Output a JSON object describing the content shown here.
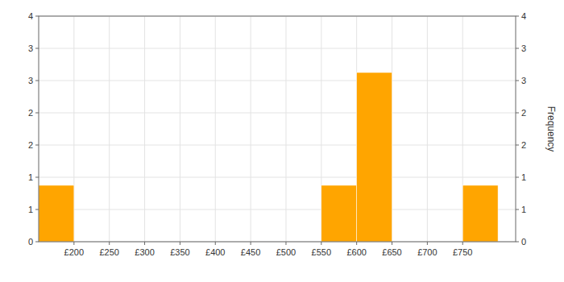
{
  "chart_data": {
    "type": "histogram",
    "color": "#FFA500",
    "bins": [
      150,
      200,
      250,
      300,
      350,
      400,
      450,
      500,
      550,
      600,
      650,
      700,
      750,
      800,
      825
    ],
    "values": [
      1,
      0,
      0,
      0,
      0,
      0,
      0,
      0,
      1,
      3,
      0,
      0,
      1,
      0
    ],
    "xlim": [
      150,
      825
    ],
    "xticks": [
      {
        "value": 200,
        "label": "£200"
      },
      {
        "value": 250,
        "label": "£250"
      },
      {
        "value": 300,
        "label": "£300"
      },
      {
        "value": 350,
        "label": "£350"
      },
      {
        "value": 400,
        "label": "£400"
      },
      {
        "value": 450,
        "label": "£450"
      },
      {
        "value": 500,
        "label": "£500"
      },
      {
        "value": 550,
        "label": "£550"
      },
      {
        "value": 600,
        "label": "£600"
      },
      {
        "value": 650,
        "label": "£650"
      },
      {
        "value": 700,
        "label": "£700"
      },
      {
        "value": 750,
        "label": "£750"
      }
    ],
    "ylim": [
      0,
      4
    ],
    "yticks": [
      0,
      {
        "value": 0.5714,
        "label": "1"
      },
      {
        "value": 1.1429,
        "label": "1"
      },
      {
        "value": 1.7143,
        "label": "2"
      },
      {
        "value": 2.2857,
        "label": "2"
      },
      {
        "value": 2.8571,
        "label": "3"
      },
      {
        "value": 3.4286,
        "label": "3"
      },
      4
    ],
    "y2label": "Frequency",
    "y2lim": [
      0,
      4
    ],
    "y2ticks": [
      0,
      {
        "value": 0.5714,
        "label": "1"
      },
      {
        "value": 1.1429,
        "label": "1"
      },
      {
        "value": 1.7143,
        "label": "2"
      },
      {
        "value": 2.2857,
        "label": "2"
      },
      {
        "value": 2.8571,
        "label": "3"
      },
      {
        "value": 3.4286,
        "label": "3"
      },
      4
    ],
    "grid": true
  }
}
